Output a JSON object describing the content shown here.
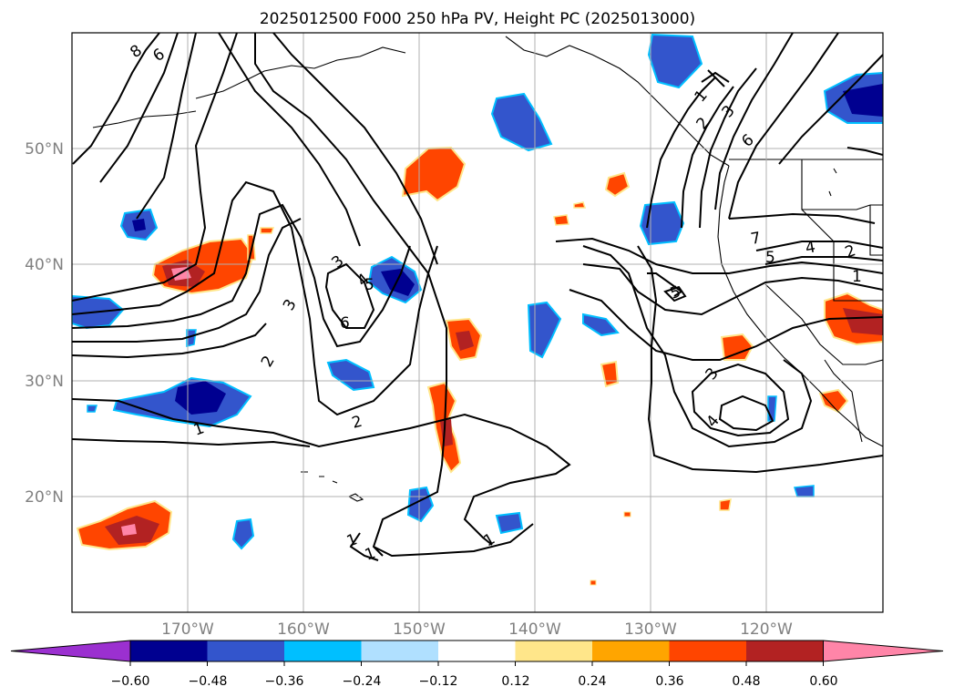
{
  "title": "2025012500 F000 250 hPa PV, Height PC (2025013000)",
  "latitudes": [
    "50°N",
    "40°N",
    "30°N",
    "20°N"
  ],
  "longitudes": [
    "170°W",
    "160°W",
    "150°W",
    "140°W",
    "130°W",
    "120°W"
  ],
  "colorbar": {
    "ticks": [
      "−0.60",
      "−0.48",
      "−0.36",
      "−0.24",
      "−0.12",
      "0.12",
      "0.24",
      "0.36",
      "0.48",
      "0.60"
    ],
    "colors": [
      "#9b30d0",
      "#000090",
      "#3355cc",
      "#00bfff",
      "#b0e0ff",
      "#ffffff",
      "#ffe68a",
      "#ffa500",
      "#ff4500",
      "#b22222",
      "#ff85a8"
    ]
  },
  "contour_labels": [
    {
      "text": "8"
    },
    {
      "text": "6"
    },
    {
      "text": "3"
    },
    {
      "text": "4"
    },
    {
      "text": "5"
    },
    {
      "text": "6"
    },
    {
      "text": "3"
    },
    {
      "text": "2"
    },
    {
      "text": "1"
    },
    {
      "text": "2"
    },
    {
      "text": "1"
    },
    {
      "text": "1"
    },
    {
      "text": "1"
    },
    {
      "text": "1"
    },
    {
      "text": "2"
    },
    {
      "text": "3"
    },
    {
      "text": "6"
    },
    {
      "text": "7"
    },
    {
      "text": "5"
    },
    {
      "text": "4"
    },
    {
      "text": "2"
    },
    {
      "text": "1"
    },
    {
      "text": "5"
    },
    {
      "text": "3"
    },
    {
      "text": "4"
    }
  ]
}
